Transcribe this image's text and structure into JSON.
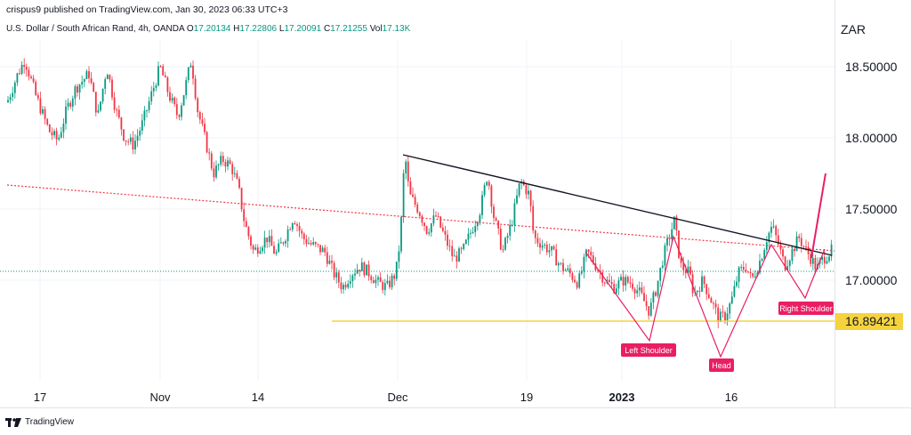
{
  "header": {
    "published": "crispus9 published on TradingView.com, Jan 30, 2023 06:33 UTC+3"
  },
  "symbol_line": {
    "name": "U.S. Dollar / South African Rand, 4h, OANDA",
    "o_label": "O",
    "o_value": "17.20134",
    "h_label": "H",
    "h_value": "17.22806",
    "l_label": "L",
    "l_value": "17.20091",
    "c_label": "C",
    "c_value": "17.21255",
    "vol_label": "Vol",
    "vol_value": "17.13K"
  },
  "currency": "ZAR",
  "footer": {
    "brand": "TradingView"
  },
  "colors": {
    "up": "#089981",
    "down": "#f23645",
    "grid": "#f0f3fa",
    "trendline": "#131722",
    "pattern": "#e91e63",
    "support": "#f5d33f",
    "dotted": "#f23645"
  },
  "chart_data": {
    "type": "candlestick",
    "title": "U.S. Dollar / South African Rand, 4h, OANDA",
    "y_ticks": [
      "18.50000",
      "18.00000",
      "17.50000",
      "17.00000"
    ],
    "y_tick_values": [
      18.5,
      18.0,
      17.5,
      17.0
    ],
    "x_ticks": [
      "17",
      "Nov",
      "14",
      "Dec",
      "19",
      "2023",
      "16"
    ],
    "ylim": [
      16.6,
      18.75
    ],
    "highlight_label": "16.89421",
    "highlight_value": 16.89421,
    "annotations": [
      "Left Shoulder",
      "Head",
      "Right Shoulder"
    ],
    "grid": true,
    "price_path": [
      [
        0,
        18.15
      ],
      [
        8,
        18.25
      ],
      [
        20,
        18.45
      ],
      [
        28,
        18.55
      ],
      [
        40,
        18.3
      ],
      [
        55,
        18.05
      ],
      [
        65,
        17.98
      ],
      [
        75,
        18.2
      ],
      [
        85,
        18.35
      ],
      [
        100,
        18.45
      ],
      [
        110,
        18.15
      ],
      [
        120,
        18.5
      ],
      [
        130,
        18.2
      ],
      [
        140,
        18.0
      ],
      [
        150,
        17.95
      ],
      [
        160,
        18.1
      ],
      [
        170,
        18.3
      ],
      [
        180,
        18.5
      ],
      [
        190,
        18.3
      ],
      [
        200,
        18.15
      ],
      [
        208,
        18.35
      ],
      [
        215,
        18.55
      ],
      [
        222,
        18.2
      ],
      [
        230,
        18.0
      ],
      [
        240,
        17.75
      ],
      [
        250,
        17.85
      ],
      [
        260,
        17.8
      ],
      [
        268,
        17.65
      ],
      [
        275,
        17.4
      ],
      [
        285,
        17.2
      ],
      [
        300,
        17.3
      ],
      [
        310,
        17.18
      ],
      [
        320,
        17.3
      ],
      [
        330,
        17.45
      ],
      [
        340,
        17.3
      ],
      [
        350,
        17.25
      ],
      [
        365,
        17.2
      ],
      [
        375,
        17.05
      ],
      [
        385,
        16.95
      ],
      [
        395,
        17.05
      ],
      [
        405,
        17.1
      ],
      [
        415,
        17.05
      ],
      [
        425,
        16.98
      ],
      [
        435,
        16.95
      ],
      [
        445,
        17.05
      ],
      [
        450,
        17.3
      ],
      [
        455,
        17.9
      ],
      [
        460,
        17.6
      ],
      [
        470,
        17.5
      ],
      [
        480,
        17.35
      ],
      [
        490,
        17.45
      ],
      [
        500,
        17.3
      ],
      [
        510,
        17.15
      ],
      [
        520,
        17.2
      ],
      [
        530,
        17.35
      ],
      [
        540,
        17.5
      ],
      [
        548,
        17.75
      ],
      [
        555,
        17.45
      ],
      [
        565,
        17.2
      ],
      [
        575,
        17.4
      ],
      [
        585,
        17.7
      ],
      [
        595,
        17.6
      ],
      [
        600,
        17.3
      ],
      [
        610,
        17.25
      ],
      [
        620,
        17.2
      ],
      [
        630,
        17.1
      ],
      [
        640,
        17.05
      ],
      [
        650,
        16.98
      ],
      [
        660,
        17.2
      ],
      [
        670,
        17.1
      ],
      [
        680,
        17.0
      ],
      [
        690,
        16.95
      ],
      [
        700,
        17.0
      ],
      [
        710,
        16.98
      ],
      [
        720,
        16.9
      ],
      [
        730,
        16.78
      ],
      [
        738,
        16.95
      ],
      [
        745,
        17.15
      ],
      [
        752,
        17.3
      ],
      [
        758,
        17.42
      ],
      [
        765,
        17.1
      ],
      [
        775,
        17.05
      ],
      [
        780,
        16.9
      ],
      [
        790,
        17.0
      ],
      [
        800,
        16.85
      ],
      [
        808,
        16.73
      ],
      [
        815,
        16.75
      ],
      [
        822,
        16.85
      ],
      [
        830,
        17.05
      ],
      [
        838,
        17.1
      ],
      [
        845,
        17.0
      ],
      [
        855,
        17.15
      ],
      [
        862,
        17.3
      ],
      [
        868,
        17.38
      ],
      [
        875,
        17.25
      ],
      [
        882,
        17.1
      ],
      [
        890,
        17.2
      ],
      [
        898,
        17.3
      ],
      [
        905,
        17.22
      ],
      [
        912,
        17.15
      ],
      [
        918,
        17.08
      ],
      [
        925,
        17.15
      ],
      [
        935,
        17.21
      ]
    ]
  }
}
